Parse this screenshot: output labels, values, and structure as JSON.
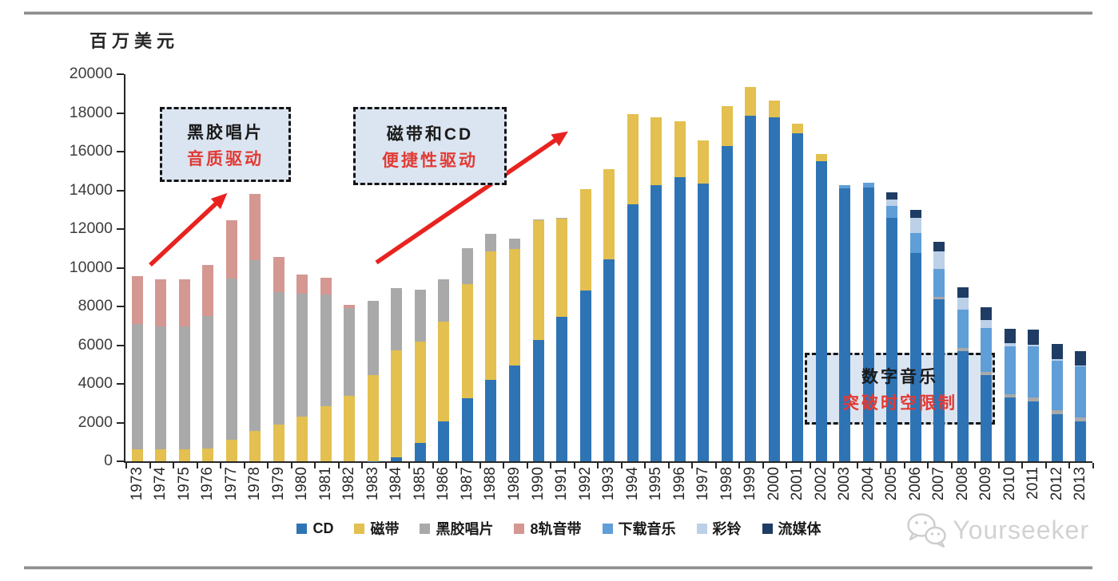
{
  "page": {
    "watermark": {
      "text": "Yourseeker",
      "icon": "wechat-icon"
    }
  },
  "chart_data": {
    "type": "bar",
    "subtype": "stacked",
    "title": "",
    "unit_label": "百万美元",
    "xlabel": "",
    "ylabel": "百万美元",
    "ylim": [
      0,
      20000
    ],
    "ytick_step": 2000,
    "yticks": [
      0,
      2000,
      4000,
      6000,
      8000,
      10000,
      12000,
      14000,
      16000,
      18000,
      20000
    ],
    "grid": false,
    "legend_position": "bottom",
    "categories": [
      1973,
      1974,
      1975,
      1976,
      1977,
      1978,
      1979,
      1980,
      1981,
      1982,
      1983,
      1984,
      1985,
      1986,
      1987,
      1988,
      1989,
      1990,
      1991,
      1992,
      1993,
      1994,
      1995,
      1996,
      1997,
      1998,
      1999,
      2000,
      2001,
      2002,
      2003,
      2004,
      2005,
      2006,
      2007,
      2008,
      2009,
      2010,
      2011,
      2012,
      2013
    ],
    "series": [
      {
        "name": "CD",
        "color": "#2e74b5",
        "values": [
          0,
          0,
          0,
          0,
          0,
          0,
          0,
          0,
          0,
          0,
          20,
          200,
          950,
          2050,
          3250,
          4200,
          4950,
          6250,
          7480,
          8830,
          10435,
          13295,
          14285,
          14700,
          14355,
          16280,
          17860,
          17765,
          16940,
          15525,
          14100,
          14150,
          12570,
          10780,
          8370,
          5700,
          4450,
          3300,
          3100,
          2450,
          2050
        ]
      },
      {
        "name": "磁带",
        "color": "#e3c04f",
        "values": [
          600,
          600,
          600,
          650,
          1100,
          1550,
          1900,
          2300,
          2850,
          3400,
          4450,
          5550,
          5250,
          5150,
          5900,
          6650,
          6000,
          6200,
          5050,
          5250,
          4675,
          4650,
          3500,
          2850,
          2225,
          2090,
          1470,
          855,
          510,
          345,
          0,
          0,
          0,
          0,
          0,
          0,
          0,
          0,
          0,
          0,
          0
        ]
      },
      {
        "name": "黑胶唱片",
        "color": "#a9a9a9",
        "values": [
          6500,
          6350,
          6350,
          6850,
          8350,
          8850,
          6850,
          6350,
          5750,
          4500,
          3800,
          3200,
          2650,
          2200,
          1850,
          900,
          550,
          50,
          50,
          0,
          0,
          0,
          0,
          0,
          0,
          0,
          0,
          0,
          0,
          0,
          0,
          0,
          0,
          0,
          140,
          150,
          150,
          150,
          200,
          200,
          200
        ]
      },
      {
        "name": "8轨音带",
        "color": "#d59792",
        "values": [
          2450,
          2450,
          2450,
          2650,
          3000,
          3400,
          1800,
          1000,
          900,
          200,
          0,
          0,
          0,
          0,
          0,
          0,
          0,
          0,
          0,
          0,
          0,
          0,
          0,
          0,
          0,
          0,
          0,
          0,
          0,
          0,
          0,
          0,
          0,
          0,
          0,
          0,
          0,
          0,
          0,
          0,
          0
        ]
      },
      {
        "name": "下载音乐",
        "color": "#5f9ed7",
        "values": [
          0,
          0,
          0,
          0,
          0,
          0,
          0,
          0,
          0,
          0,
          0,
          0,
          0,
          0,
          0,
          0,
          0,
          0,
          0,
          0,
          0,
          0,
          0,
          0,
          0,
          0,
          0,
          0,
          0,
          0,
          150,
          250,
          620,
          1030,
          1445,
          1990,
          2300,
          2500,
          2620,
          2550,
          2650
        ]
      },
      {
        "name": "彩铃",
        "color": "#bcd0e8",
        "values": [
          0,
          0,
          0,
          0,
          0,
          0,
          0,
          0,
          0,
          0,
          0,
          0,
          0,
          0,
          0,
          0,
          0,
          0,
          0,
          0,
          0,
          0,
          0,
          0,
          0,
          0,
          0,
          0,
          0,
          0,
          0,
          0,
          345,
          760,
          895,
          600,
          400,
          150,
          100,
          80,
          60
        ]
      },
      {
        "name": "流媒体",
        "color": "#1f3c64",
        "values": [
          0,
          0,
          0,
          0,
          0,
          0,
          0,
          0,
          0,
          0,
          0,
          0,
          0,
          0,
          0,
          0,
          0,
          0,
          0,
          0,
          0,
          0,
          0,
          0,
          0,
          0,
          0,
          0,
          0,
          0,
          0,
          0,
          345,
          410,
          480,
          550,
          650,
          750,
          780,
          800,
          750
        ]
      }
    ],
    "annotations": [
      {
        "line1": "黑胶唱片",
        "line2": "音质驱动"
      },
      {
        "line1": "磁带和CD",
        "line2": "便捷性驱动"
      },
      {
        "line1": "数字音乐",
        "line2": "突破时空限制"
      }
    ],
    "colors": {
      "annotation_fill": "#dbe5f1",
      "annotation_border": "#141414",
      "annotation_red": "#e23a34",
      "arrow_red": "#e8231f"
    }
  }
}
